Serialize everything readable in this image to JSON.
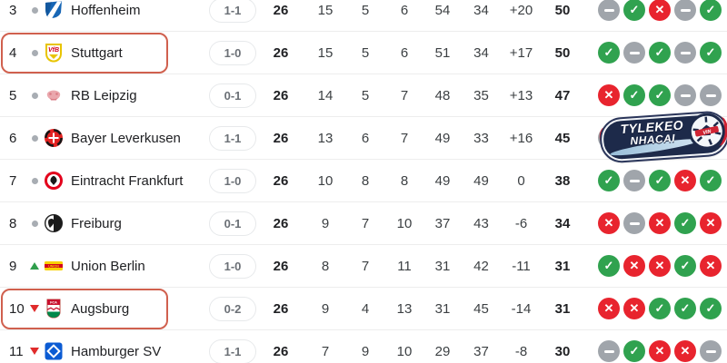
{
  "watermark": {
    "line1": "TYLEKEO",
    "line2": "NHACAI",
    "ball_text": "VIN"
  },
  "colors": {
    "win_green": "#30a24f",
    "loss_red": "#e8242e",
    "draw_gray": "#a0a5ab",
    "highlight_border": "#d0604e",
    "trend_up_green": "#2f9e4c",
    "trend_down_red": "#e02b2b",
    "watermark_navy": "#1d2a4a"
  },
  "form_icons": {
    "win": "check",
    "draw": "dash",
    "loss": "cross"
  },
  "table": {
    "rows": [
      {
        "position": "3",
        "trend": "none",
        "badge": "hoffenheim-crest",
        "team": "Hoffenheim",
        "score": "1-1",
        "played": "26",
        "wins": "15",
        "draws": "5",
        "losses": "6",
        "goals_for": "54",
        "goals_against": "34",
        "goal_diff": "+20",
        "points": "50",
        "form": [
          "D",
          "W",
          "L",
          "D",
          "W"
        ],
        "highlighted": false,
        "watermark_over_form": false
      },
      {
        "position": "4",
        "trend": "none",
        "badge": "stuttgart-crest",
        "team": "Stuttgart",
        "score": "1-0",
        "played": "26",
        "wins": "15",
        "draws": "5",
        "losses": "6",
        "goals_for": "51",
        "goals_against": "34",
        "goal_diff": "+17",
        "points": "50",
        "form": [
          "W",
          "D",
          "W",
          "D",
          "W"
        ],
        "highlighted": true,
        "watermark_over_form": false
      },
      {
        "position": "5",
        "trend": "none",
        "badge": "rb-leipzig-crest",
        "team": "RB Leipzig",
        "score": "0-1",
        "played": "26",
        "wins": "14",
        "draws": "5",
        "losses": "7",
        "goals_for": "48",
        "goals_against": "35",
        "goal_diff": "+13",
        "points": "47",
        "form": [
          "L",
          "W",
          "W",
          "D",
          "D"
        ],
        "highlighted": false,
        "watermark_over_form": false
      },
      {
        "position": "6",
        "trend": "none",
        "badge": "leverkusen-crest",
        "team": "Bayer Leverkusen",
        "score": "1-1",
        "played": "26",
        "wins": "13",
        "draws": "6",
        "losses": "7",
        "goals_for": "49",
        "goals_against": "33",
        "goal_diff": "+16",
        "points": "45",
        "form": [
          "D",
          "",
          "",
          "",
          ""
        ],
        "highlighted": false,
        "watermark_over_form": true
      },
      {
        "position": "7",
        "trend": "none",
        "badge": "frankfurt-crest",
        "team": "Eintracht Frankfurt",
        "score": "1-0",
        "played": "26",
        "wins": "10",
        "draws": "8",
        "losses": "8",
        "goals_for": "49",
        "goals_against": "49",
        "goal_diff": "0",
        "points": "38",
        "form": [
          "W",
          "D",
          "W",
          "L",
          "W"
        ],
        "highlighted": false,
        "watermark_over_form": false
      },
      {
        "position": "8",
        "trend": "none",
        "badge": "freiburg-crest",
        "team": "Freiburg",
        "score": "0-1",
        "played": "26",
        "wins": "9",
        "draws": "7",
        "losses": "10",
        "goals_for": "37",
        "goals_against": "43",
        "goal_diff": "-6",
        "points": "34",
        "form": [
          "L",
          "D",
          "L",
          "W",
          "L"
        ],
        "highlighted": false,
        "watermark_over_form": false
      },
      {
        "position": "9",
        "trend": "up",
        "badge": "union-berlin-crest",
        "team": "Union Berlin",
        "score": "1-0",
        "played": "26",
        "wins": "8",
        "draws": "7",
        "losses": "11",
        "goals_for": "31",
        "goals_against": "42",
        "goal_diff": "-11",
        "points": "31",
        "form": [
          "W",
          "L",
          "L",
          "W",
          "L"
        ],
        "highlighted": false,
        "watermark_over_form": false
      },
      {
        "position": "10",
        "trend": "down",
        "badge": "augsburg-crest",
        "team": "Augsburg",
        "score": "0-2",
        "played": "26",
        "wins": "9",
        "draws": "4",
        "losses": "13",
        "goals_for": "31",
        "goals_against": "45",
        "goal_diff": "-14",
        "points": "31",
        "form": [
          "L",
          "L",
          "W",
          "W",
          "W"
        ],
        "highlighted": true,
        "watermark_over_form": false
      },
      {
        "position": "11",
        "trend": "down",
        "badge": "hamburg-crest",
        "team": "Hamburger SV",
        "score": "1-1",
        "played": "26",
        "wins": "7",
        "draws": "9",
        "losses": "10",
        "goals_for": "29",
        "goals_against": "37",
        "goal_diff": "-8",
        "points": "30",
        "form": [
          "D",
          "W",
          "L",
          "L",
          "D"
        ],
        "highlighted": false,
        "watermark_over_form": false
      }
    ]
  }
}
